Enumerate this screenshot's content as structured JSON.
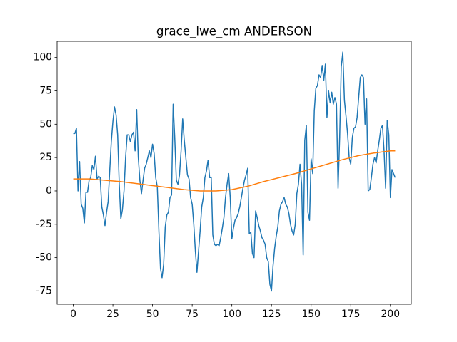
{
  "chart_data": {
    "type": "line",
    "title": "grace_lwe_cm ANDERSON",
    "xlim": [
      -10.15,
      213.15
    ],
    "ylim": [
      -84.9,
      112.1
    ],
    "xticks": [
      0,
      25,
      50,
      75,
      100,
      125,
      150,
      175,
      200
    ],
    "yticks": [
      -75,
      -50,
      -25,
      0,
      25,
      50,
      75,
      100
    ],
    "grid": false,
    "series": [
      {
        "color": "#1f77b4",
        "x": [
          0,
          1,
          2,
          3,
          4,
          5,
          6,
          7,
          8,
          9,
          10,
          11,
          12,
          13,
          14,
          15,
          16,
          17,
          18,
          19,
          20,
          21,
          22,
          23,
          24,
          25,
          26,
          27,
          28,
          29,
          30,
          31,
          32,
          33,
          34,
          35,
          36,
          37,
          38,
          39,
          40,
          41,
          42,
          43,
          44,
          45,
          46,
          47,
          48,
          49,
          50,
          51,
          52,
          53,
          54,
          55,
          56,
          57,
          58,
          59,
          60,
          61,
          62,
          63,
          64,
          65,
          66,
          67,
          68,
          69,
          70,
          71,
          72,
          73,
          74,
          75,
          76,
          77,
          78,
          79,
          80,
          81,
          82,
          83,
          84,
          85,
          86,
          87,
          88,
          89,
          90,
          91,
          92,
          93,
          94,
          95,
          96,
          97,
          98,
          99,
          100,
          101,
          102,
          103,
          104,
          105,
          106,
          107,
          108,
          109,
          110,
          111,
          112,
          113,
          114,
          115,
          116,
          117,
          118,
          119,
          120,
          121,
          122,
          123,
          124,
          125,
          126,
          127,
          128,
          129,
          130,
          131,
          132,
          133,
          134,
          135,
          136,
          137,
          138,
          139,
          140,
          141,
          142,
          143,
          144,
          145,
          146,
          147,
          148,
          149,
          150,
          151,
          152,
          153,
          154,
          155,
          156,
          157,
          158,
          159,
          160,
          161,
          162,
          163,
          164,
          165,
          166,
          167,
          168,
          169,
          170,
          171,
          172,
          173,
          174,
          175,
          176,
          177,
          178,
          179,
          180,
          181,
          182,
          183,
          184,
          185,
          186,
          187,
          188,
          189,
          190,
          191,
          192,
          193,
          194,
          195,
          196,
          197,
          198,
          199,
          200,
          201,
          202,
          203
        ],
        "values": [
          43,
          43,
          47,
          0,
          22,
          -10,
          -13,
          -24,
          -1,
          -1,
          8,
          10,
          19,
          16,
          26,
          9,
          11,
          10,
          -12,
          -18,
          -26,
          -16,
          -8,
          15,
          37,
          52,
          63,
          57,
          42,
          5,
          -21,
          -14,
          0,
          25,
          42,
          42,
          37,
          42,
          44,
          30,
          61,
          25,
          8,
          -2,
          8,
          17,
          20,
          25,
          30,
          25,
          35,
          28,
          10,
          3,
          -30,
          -58,
          -65,
          -55,
          -27,
          -18,
          -16,
          -5,
          -3,
          65,
          40,
          8,
          5,
          12,
          30,
          54,
          38,
          25,
          12,
          9,
          -5,
          -10,
          -25,
          -45,
          -61,
          -45,
          -30,
          -12,
          -5,
          10,
          15,
          23,
          10,
          10,
          -33,
          -40,
          -41,
          -40,
          -41,
          -35,
          -28,
          -20,
          -5,
          5,
          13,
          -5,
          -36,
          -28,
          -22,
          -20,
          -17,
          -12,
          -5,
          2,
          8,
          12,
          17,
          -32,
          -31,
          -47,
          -50,
          -15,
          -20,
          -26,
          -30,
          -35,
          -37,
          -40,
          -50,
          -53,
          -70,
          -75,
          -56,
          -43,
          -34,
          -27,
          -15,
          -10,
          -8,
          -5,
          -10,
          -12,
          -17,
          -25,
          -30,
          -33,
          -25,
          -2,
          5,
          20,
          5,
          -48,
          38,
          49,
          -16,
          -22,
          24,
          13,
          60,
          77,
          79,
          87,
          85,
          94,
          83,
          95,
          55,
          75,
          66,
          74,
          65,
          70,
          65,
          2,
          40,
          93,
          104,
          68,
          56,
          43,
          25,
          20,
          40,
          47,
          48,
          55,
          70,
          85,
          87,
          85,
          50,
          69,
          0,
          1,
          10,
          20,
          25,
          21,
          30,
          38,
          47,
          49,
          30,
          2,
          53,
          42,
          -5,
          16,
          13,
          10
        ]
      },
      {
        "color": "#ff7f0e",
        "x": [
          0,
          10,
          20,
          30,
          40,
          50,
          60,
          70,
          80,
          90,
          100,
          110,
          120,
          130,
          140,
          150,
          160,
          170,
          180,
          190,
          200,
          203
        ],
        "values": [
          9,
          9,
          8,
          7,
          5.5,
          4,
          2.5,
          1,
          0,
          0,
          1,
          3.5,
          7,
          10,
          13,
          16.5,
          20,
          23.5,
          26.5,
          28.5,
          30,
          30
        ]
      }
    ]
  }
}
